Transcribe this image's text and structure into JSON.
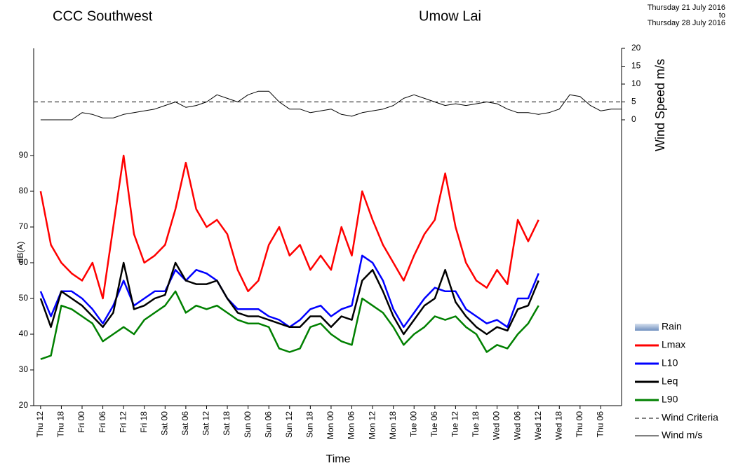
{
  "chart_data": {
    "type": "line",
    "title": "CCC Southwest",
    "subtitle": "Umow Lai",
    "date_from": "Thursday  21 July 2016",
    "date_to_word": "to",
    "date_to": "Thursday  28 July 2016",
    "x_label": "Time",
    "y_label": "dB(A)",
    "y2_label": "Wind Speed m/s",
    "xlim": [
      10,
      180
    ],
    "xticks": [
      {
        "value": 12,
        "label": "Thu 12"
      },
      {
        "value": 18,
        "label": "Thu 18"
      },
      {
        "value": 24,
        "label": "Fri 00"
      },
      {
        "value": 30,
        "label": "Fri 06"
      },
      {
        "value": 36,
        "label": "Fri 12"
      },
      {
        "value": 42,
        "label": "Fri 18"
      },
      {
        "value": 48,
        "label": "Sat 00"
      },
      {
        "value": 54,
        "label": "Sat 06"
      },
      {
        "value": 60,
        "label": "Sat 12"
      },
      {
        "value": 66,
        "label": "Sat 18"
      },
      {
        "value": 72,
        "label": "Sun 00"
      },
      {
        "value": 78,
        "label": "Sun 06"
      },
      {
        "value": 84,
        "label": "Sun 12"
      },
      {
        "value": 90,
        "label": "Sun 18"
      },
      {
        "value": 96,
        "label": "Mon 00"
      },
      {
        "value": 102,
        "label": "Mon 06"
      },
      {
        "value": 108,
        "label": "Mon 12"
      },
      {
        "value": 114,
        "label": "Mon 18"
      },
      {
        "value": 120,
        "label": "Tue 00"
      },
      {
        "value": 126,
        "label": "Tue 06"
      },
      {
        "value": 132,
        "label": "Tue 12"
      },
      {
        "value": 138,
        "label": "Tue 18"
      },
      {
        "value": 144,
        "label": "Wed 00"
      },
      {
        "value": 150,
        "label": "Wed 06"
      },
      {
        "value": 156,
        "label": "Wed 12"
      },
      {
        "value": 162,
        "label": "Wed 18"
      },
      {
        "value": 168,
        "label": "Thu 00"
      },
      {
        "value": 174,
        "label": "Thu 06"
      }
    ],
    "ylim": [
      20,
      120
    ],
    "yticks": [
      20,
      30,
      40,
      50,
      60,
      70,
      80,
      90
    ],
    "y2lim": [
      0,
      20
    ],
    "y2ticks": [
      0,
      5,
      10,
      15,
      20
    ],
    "x": [
      12,
      15,
      18,
      21,
      24,
      27,
      30,
      33,
      36,
      39,
      42,
      45,
      48,
      51,
      54,
      57,
      60,
      63,
      66,
      69,
      72,
      75,
      78,
      81,
      84,
      87,
      90,
      93,
      96,
      99,
      102,
      105,
      108,
      111,
      114,
      117,
      120,
      123,
      126,
      129,
      132,
      135,
      138,
      141,
      144,
      147,
      150,
      153,
      156,
      159,
      162,
      165,
      168,
      171,
      174,
      177,
      180
    ],
    "rain": {
      "name": "Rain",
      "color": "#8fa9cf"
    },
    "wind_criteria": 5,
    "wind_criteria_name": "Wind Criteria",
    "series": [
      {
        "name": "Lmax",
        "color": "#ff0000",
        "values": [
          80,
          65,
          60,
          57,
          55,
          60,
          50,
          70,
          90,
          68,
          60,
          62,
          65,
          75,
          88,
          75,
          70,
          72,
          68,
          58,
          52,
          55,
          65,
          70,
          62,
          65,
          58,
          62,
          58,
          70,
          62,
          80,
          72,
          65,
          60,
          55,
          62,
          68,
          72,
          85,
          70,
          60,
          55,
          53,
          58,
          54,
          72,
          66,
          72,
          null,
          null,
          null,
          null,
          null,
          null,
          null,
          null
        ]
      },
      {
        "name": "L10",
        "color": "#0000ff",
        "values": [
          52,
          45,
          52,
          52,
          50,
          47,
          43,
          48,
          55,
          48,
          50,
          52,
          52,
          58,
          55,
          58,
          57,
          55,
          50,
          47,
          47,
          47,
          45,
          44,
          42,
          44,
          47,
          48,
          45,
          47,
          48,
          62,
          60,
          55,
          47,
          42,
          46,
          50,
          53,
          52,
          52,
          47,
          45,
          43,
          44,
          42,
          50,
          50,
          57,
          null,
          null,
          null,
          null,
          null,
          null,
          null,
          null
        ]
      },
      {
        "name": "Leq",
        "color": "#000000",
        "values": [
          50,
          42,
          52,
          50,
          48,
          45,
          42,
          46,
          60,
          47,
          48,
          50,
          51,
          60,
          55,
          54,
          54,
          55,
          50,
          46,
          45,
          45,
          44,
          43,
          42,
          42,
          45,
          45,
          42,
          45,
          44,
          55,
          58,
          52,
          45,
          40,
          44,
          48,
          50,
          58,
          49,
          45,
          42,
          40,
          42,
          41,
          47,
          48,
          55,
          null,
          null,
          null,
          null,
          null,
          null,
          null,
          null
        ]
      },
      {
        "name": "L90",
        "color": "#008000",
        "values": [
          33,
          34,
          48,
          47,
          45,
          43,
          38,
          40,
          42,
          40,
          44,
          46,
          48,
          52,
          46,
          48,
          47,
          48,
          46,
          44,
          43,
          43,
          42,
          36,
          35,
          36,
          42,
          43,
          40,
          38,
          37,
          50,
          48,
          46,
          42,
          37,
          40,
          42,
          45,
          44,
          45,
          42,
          40,
          35,
          37,
          36,
          40,
          43,
          48,
          null,
          null,
          null,
          null,
          null,
          null,
          null,
          null
        ]
      },
      {
        "name": "Wind m/s",
        "color": "#000000",
        "axis": "y2",
        "values": [
          0,
          0,
          0,
          0,
          2,
          1.5,
          0.5,
          0.5,
          1.5,
          2,
          2.5,
          3,
          4,
          5,
          3.5,
          4,
          5,
          7,
          6,
          5,
          7,
          8,
          8,
          5,
          3,
          3,
          2,
          2.5,
          3,
          1.5,
          1,
          2,
          2.5,
          3,
          4,
          6,
          7,
          6,
          5,
          4,
          4.5,
          4,
          4.5,
          5,
          4.5,
          3,
          2,
          2,
          1.5,
          2,
          3,
          7,
          6.5,
          4,
          2.5,
          3,
          3
        ]
      }
    ]
  }
}
